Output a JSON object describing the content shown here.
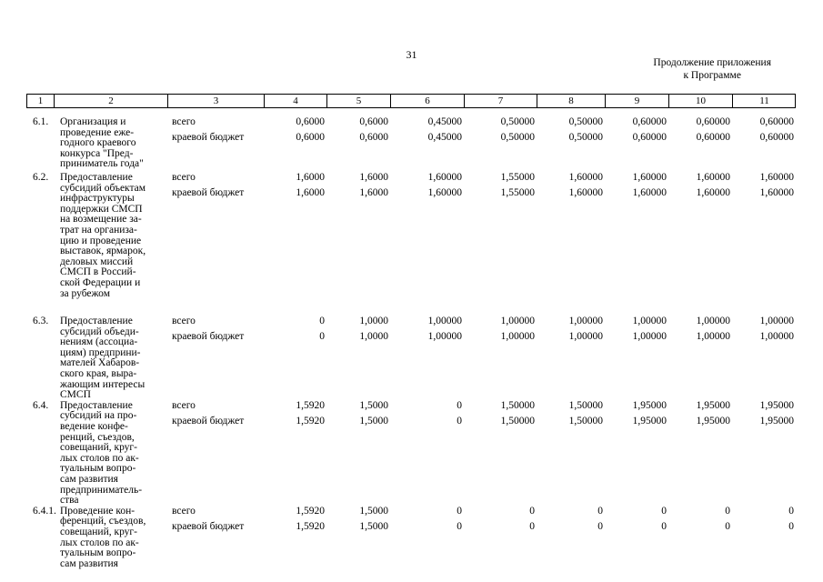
{
  "page": {
    "number": "31",
    "continuation": [
      "Продолжение приложения",
      "к Программе"
    ]
  },
  "table": {
    "header": [
      "1",
      "2",
      "3",
      "4",
      "5",
      "6",
      "7",
      "8",
      "9",
      "10",
      "11"
    ],
    "rows": [
      {
        "num": "6.1.",
        "name": "Организация и\nпроведение еже-\nгодного краевого\nконкурса \"Пред-\nприниматель года\"",
        "lines": [
          {
            "label": "всего",
            "values": [
              "0,6000",
              "0,6000",
              "0,45000",
              "0,50000",
              "0,50000",
              "0,60000",
              "0,60000",
              "0,60000"
            ]
          },
          {
            "label": "краевой бюджет",
            "values": [
              "0,6000",
              "0,6000",
              "0,45000",
              "0,50000",
              "0,50000",
              "0,60000",
              "0,60000",
              "0,60000"
            ]
          }
        ]
      },
      {
        "num": "6.2.",
        "name": "Предоставление\nсубсидий объектам\nинфраструктуры\nподдержки СМСП\nна возмещение за-\nтрат на организа-\nцию и проведение\nвыставок, ярмарок,\nделовых миссий\nСМСП в Россий-\nской Федерации и\nза рубежом",
        "lines": [
          {
            "label": "всего",
            "values": [
              "1,6000",
              "1,6000",
              "1,60000",
              "1,55000",
              "1,60000",
              "1,60000",
              "1,60000",
              "1,60000"
            ]
          },
          {
            "label": "краевой бюджет",
            "values": [
              "1,6000",
              "1,6000",
              "1,60000",
              "1,55000",
              "1,60000",
              "1,60000",
              "1,60000",
              "1,60000"
            ]
          }
        ]
      },
      {
        "num": "6.3.",
        "name": "Предоставление\nсубсидий объеди-\nнениям (ассоциа-\nциям) предприни-\nмателей Хабаров-\nского края, выра-\nжающим интересы\nСМСП",
        "lines": [
          {
            "label": "всего",
            "values": [
              "0",
              "1,0000",
              "1,00000",
              "1,00000",
              "1,00000",
              "1,00000",
              "1,00000",
              "1,00000"
            ]
          },
          {
            "label": "краевой бюджет",
            "values": [
              "0",
              "1,0000",
              "1,00000",
              "1,00000",
              "1,00000",
              "1,00000",
              "1,00000",
              "1,00000"
            ]
          }
        ]
      },
      {
        "num": "6.4.",
        "name": "Предоставление\nсубсидий на про-\nведение конфе-\nренций, съездов,\nсовещаний, круг-\nлых столов по ак-\nтуальным вопро-\nсам развития\nпредприниматель-\nства",
        "lines": [
          {
            "label": "всего",
            "values": [
              "1,5920",
              "1,5000",
              "0",
              "1,50000",
              "1,50000",
              "1,95000",
              "1,95000",
              "1,95000"
            ]
          },
          {
            "label": "краевой бюджет",
            "values": [
              "1,5920",
              "1,5000",
              "0",
              "1,50000",
              "1,50000",
              "1,95000",
              "1,95000",
              "1,95000"
            ]
          }
        ]
      },
      {
        "num": "6.4.1.",
        "name": "Проведение кон-\nференций, съездов,\nсовещаний, круг-\nлых столов по ак-\nтуальным вопро-\nсам развития",
        "lines": [
          {
            "label": "всего",
            "values": [
              "1,5920",
              "1,5000",
              "0",
              "0",
              "0",
              "0",
              "0",
              "0"
            ]
          },
          {
            "label": "краевой бюджет",
            "values": [
              "1,5920",
              "1,5000",
              "0",
              "0",
              "0",
              "0",
              "0",
              "0"
            ]
          }
        ]
      }
    ]
  }
}
